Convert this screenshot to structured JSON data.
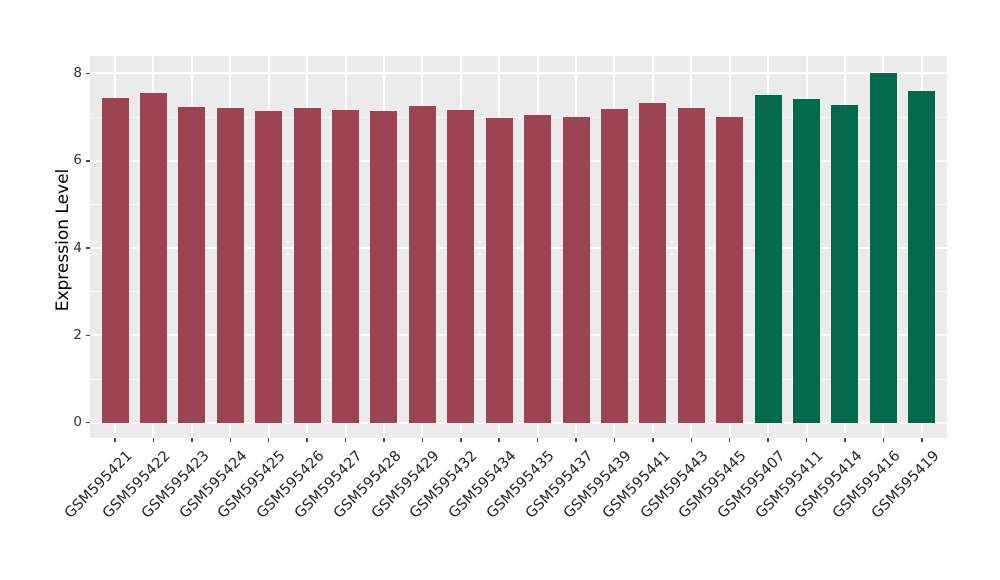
{
  "chart_data": {
    "type": "bar",
    "title": "",
    "xlabel": "",
    "ylabel": "Expression Level",
    "ylim": [
      -0.35,
      8.4
    ],
    "yticks": [
      0,
      2,
      4,
      6,
      8
    ],
    "yminor": [
      1,
      3,
      5,
      7
    ],
    "grid": true,
    "legend": "none",
    "categories": [
      "GSM595421",
      "GSM595422",
      "GSM595423",
      "GSM595424",
      "GSM595425",
      "GSM595426",
      "GSM595427",
      "GSM595428",
      "GSM595429",
      "GSM595432",
      "GSM595434",
      "GSM595435",
      "GSM595437",
      "GSM595439",
      "GSM595441",
      "GSM595443",
      "GSM595445",
      "GSM595407",
      "GSM595411",
      "GSM595414",
      "GSM595416",
      "GSM595419"
    ],
    "values": [
      7.43,
      7.56,
      7.24,
      7.21,
      7.13,
      7.21,
      7.17,
      7.13,
      7.25,
      7.16,
      6.99,
      7.05,
      7.01,
      7.18,
      7.32,
      7.2,
      7.01,
      7.51,
      7.41,
      7.28,
      8.01,
      7.6
    ],
    "groups": [
      "red",
      "red",
      "red",
      "red",
      "red",
      "red",
      "red",
      "red",
      "red",
      "red",
      "red",
      "red",
      "red",
      "red",
      "red",
      "red",
      "red",
      "green",
      "green",
      "green",
      "green",
      "green"
    ],
    "group_colors": {
      "red": "#9C4452",
      "green": "#02694B"
    },
    "colors": {
      "panel_background": "#EBEBEB",
      "grid_major": "#FFFFFF",
      "grid_minor": "rgba(255,255,255,0.6)",
      "tick_text": "#333333",
      "axis_title": "#000000"
    }
  }
}
